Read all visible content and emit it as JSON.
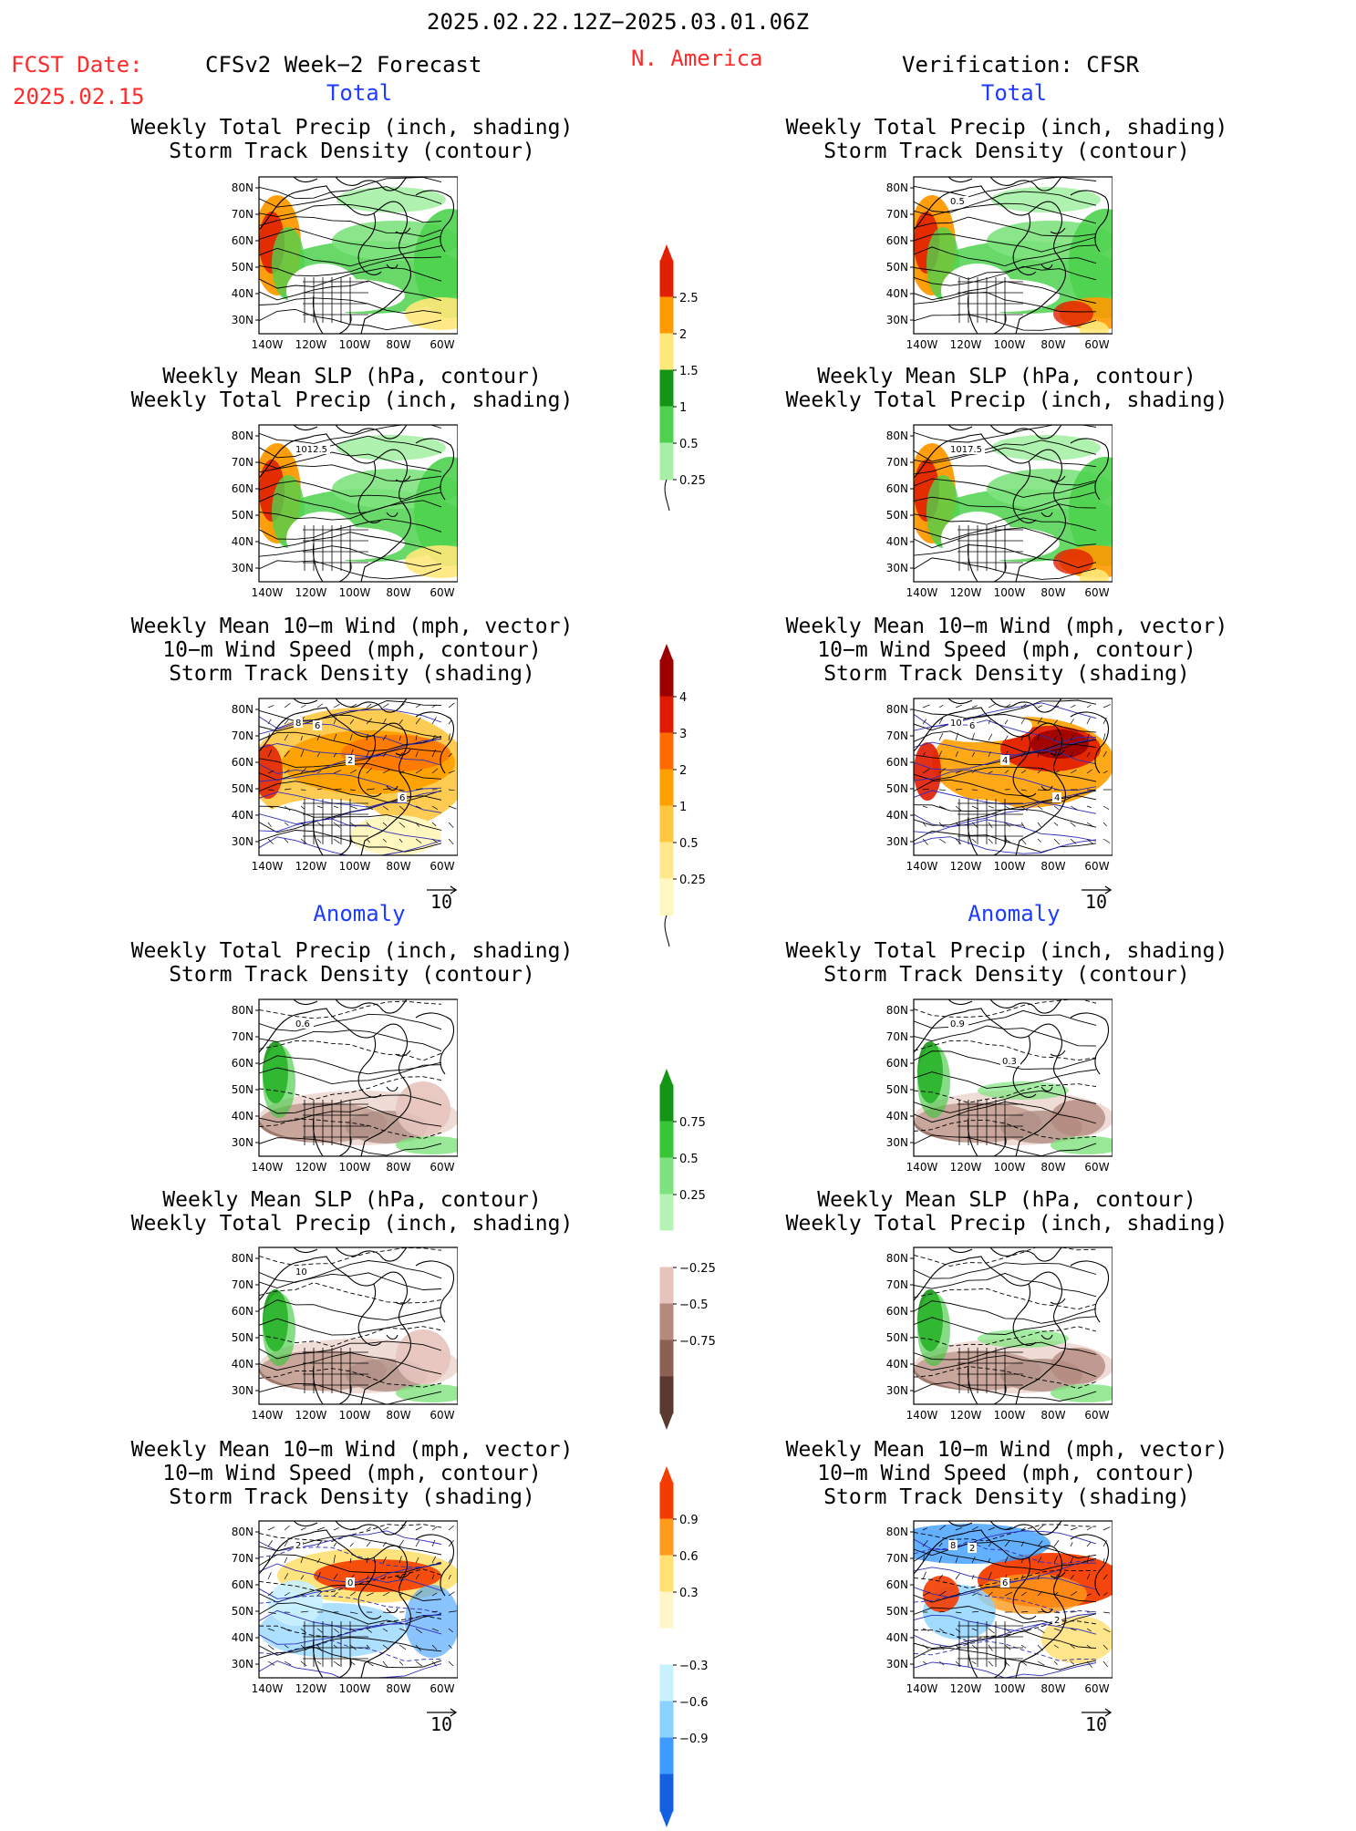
{
  "header": {
    "date_range": "2025.02.22.12Z−2025.03.01.06Z",
    "fcst_label": "FCST Date:",
    "fcst_date": "2025.02.15",
    "model": "CFSv2 Week−2 Forecast",
    "region": "N. America",
    "verification": "Verification: CFSR"
  },
  "section_labels": {
    "total": "Total",
    "anomaly": "Anomaly"
  },
  "titles": {
    "precip_storm": [
      "Weekly Total Precip (inch, shading)",
      "Storm Track Density (contour)"
    ],
    "slp_precip": [
      "Weekly Mean SLP (hPa, contour)",
      "Weekly Total Precip (inch, shading)"
    ],
    "wind_storm": [
      "Weekly Mean 10−m Wind (mph, vector)",
      "10−m Wind Speed (mph, contour)",
      "Storm Track Density (shading)"
    ]
  },
  "axes": {
    "lat_labels": [
      "80N",
      "70N",
      "60N",
      "50N",
      "40N",
      "30N"
    ],
    "lon_labels": [
      "140W",
      "120W",
      "100W",
      "80W",
      "60W"
    ]
  },
  "vector_ref": "10",
  "colorbars": {
    "precip_total": {
      "labels": [
        "2.5",
        "2",
        "1.5",
        "1",
        "0.5",
        "0.25"
      ],
      "colors": [
        "#e02000",
        "#ff9a00",
        "#ffe87a",
        "#149614",
        "#4ed24e",
        "#a6f0a6"
      ]
    },
    "storm_total": {
      "labels": [
        "4",
        "3",
        "2",
        "1",
        "0.5",
        "0.25"
      ],
      "colors": [
        "#9c0000",
        "#e01a00",
        "#ff6a00",
        "#ffa000",
        "#ffc640",
        "#ffe88a",
        "#fff7c0"
      ]
    },
    "precip_anom": {
      "labels": [
        "0.75",
        "0.5",
        "0.25",
        "−0.25",
        "−0.5",
        "−0.75"
      ],
      "colors": [
        "#149614",
        "#36c636",
        "#7ee27e",
        "#b4f4b4",
        "#ffffff",
        "#e6c4bc",
        "#b48a7e",
        "#8c6054",
        "#5a3a30"
      ]
    },
    "storm_anom": {
      "labels": [
        "0.9",
        "0.6",
        "0.3",
        "−0.3",
        "−0.6",
        "−0.9"
      ],
      "colors": [
        "#f43c00",
        "#ff9a1a",
        "#ffe070",
        "#fff6c8",
        "#ffffff",
        "#c8f0ff",
        "#8ad2ff",
        "#3c9cff",
        "#1460e0"
      ]
    }
  },
  "contour_labels": {
    "fc_precip_total": [],
    "ver_precip_total": [
      "0.5"
    ],
    "fc_slp_total": [
      "1012.5"
    ],
    "ver_slp_total": [
      "1017.5"
    ],
    "fc_wind_total": [
      "8",
      "2",
      "6",
      "6"
    ],
    "ver_wind_total": [
      "10",
      "4",
      "4",
      "6"
    ],
    "fc_precip_anom": [
      "0.6"
    ],
    "ver_precip_anom": [
      "0.9",
      "0.3"
    ],
    "fc_slp_anom": [
      "10"
    ],
    "ver_slp_anom": [],
    "fc_wind_anom": [
      "2",
      "0"
    ],
    "ver_wind_anom": [
      "8",
      "6",
      "2",
      "2"
    ]
  },
  "colors": {
    "title_red": "#ff2a2a",
    "label_blue": "#1e3cff"
  }
}
